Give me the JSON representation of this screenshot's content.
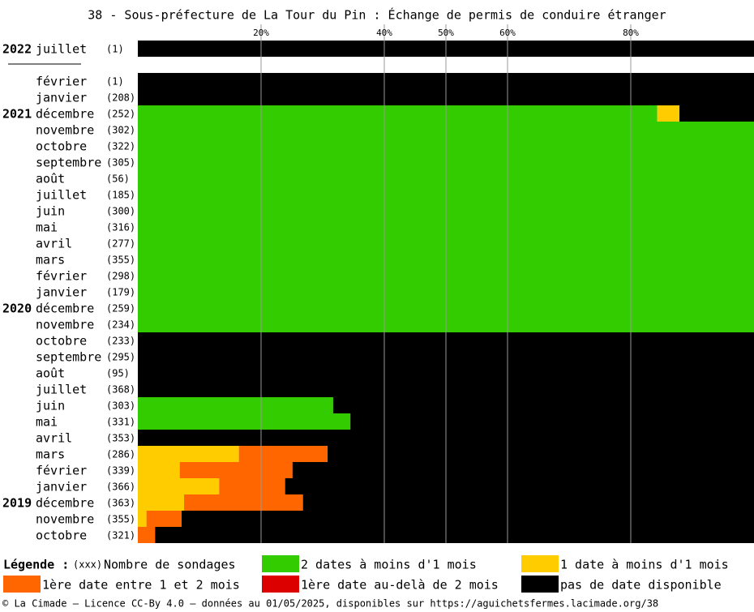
{
  "chart_data": {
    "type": "stacked-barh",
    "title": "38 - Sous-préfecture de La Tour du Pin : Échange de permis de conduire étranger",
    "categories": [
      "juillet",
      null,
      "février",
      "janvier",
      "décembre",
      "novembre",
      "octobre",
      "septembre",
      "août",
      "juillet",
      "juin",
      "mai",
      "avril",
      "mars",
      "février",
      "janvier",
      "décembre",
      "novembre",
      "octobre",
      "septembre",
      "août",
      "juillet",
      "juin",
      "mai",
      "avril",
      "mars",
      "février",
      "janvier",
      "décembre",
      "novembre",
      "octobre"
    ],
    "years": [
      "2022",
      null,
      null,
      null,
      "2021",
      null,
      null,
      null,
      null,
      null,
      null,
      null,
      null,
      null,
      null,
      null,
      "2020",
      null,
      null,
      null,
      null,
      null,
      null,
      null,
      null,
      null,
      null,
      null,
      "2019",
      null,
      null
    ],
    "count_labels": [
      "(1)",
      null,
      "(1)",
      "(208)",
      "(252)",
      "(302)",
      "(322)",
      "(305)",
      "(56)",
      "(185)",
      "(300)",
      "(316)",
      "(277)",
      "(355)",
      "(298)",
      "(179)",
      "(259)",
      "(234)",
      "(233)",
      "(295)",
      "(95)",
      "(368)",
      "(303)",
      "(331)",
      "(353)",
      "(286)",
      "(339)",
      "(366)",
      "(363)",
      "(355)",
      "(321)"
    ],
    "series": [
      {
        "name": "2 dates à moins d'1 mois",
        "color": "#33cc00",
        "values": [
          0,
          null,
          0,
          0,
          84.3,
          100,
          100,
          100,
          100,
          100,
          100,
          100,
          100,
          100,
          100,
          100,
          100,
          100,
          0,
          0,
          0,
          0,
          31.7,
          34.5,
          0,
          0,
          0,
          0,
          0,
          0,
          0
        ]
      },
      {
        "name": "1 date à moins d'1 mois",
        "color": "#ffcc00",
        "values": [
          0,
          null,
          0,
          0,
          3.6,
          0,
          0,
          0,
          0,
          0,
          0,
          0,
          0,
          0,
          0,
          0,
          0,
          0,
          0,
          0,
          0,
          0,
          0,
          0,
          0,
          16.4,
          6.8,
          13.2,
          7.5,
          1.4,
          0
        ]
      },
      {
        "name": "1ère date entre 1 et 2 mois",
        "color": "#ff6600",
        "values": [
          0,
          null,
          0,
          0,
          0,
          0,
          0,
          0,
          0,
          0,
          0,
          0,
          0,
          0,
          0,
          0,
          0,
          0,
          0,
          0,
          0,
          0,
          0,
          0,
          0,
          14.4,
          18.3,
          10.7,
          19.3,
          5.7,
          2.8
        ]
      },
      {
        "name": "1ère date au-delà de 2 mois",
        "color": "#dd0000",
        "values": [
          0,
          null,
          0,
          0,
          0,
          0,
          0,
          0,
          0,
          0,
          0,
          0,
          0,
          0,
          0,
          0,
          0,
          0,
          0,
          0,
          0,
          0,
          0,
          0,
          0,
          0,
          0,
          0,
          0,
          0,
          0
        ]
      },
      {
        "name": "pas de date disponible",
        "color": "#000000",
        "values": [
          100,
          null,
          100,
          100,
          12.1,
          0,
          0,
          0,
          0,
          0,
          0,
          0,
          0,
          0,
          0,
          0,
          0,
          0,
          100,
          100,
          100,
          100,
          68.3,
          65.5,
          100,
          69.2,
          74.9,
          76.1,
          73.2,
          92.9,
          97.2
        ]
      }
    ],
    "xlim": [
      0,
      100
    ],
    "xticks": [
      {
        "value": 20,
        "label": "20%"
      },
      {
        "value": 40,
        "label": "40%"
      },
      {
        "value": 50,
        "label": "50%"
      },
      {
        "value": 60,
        "label": "60%"
      },
      {
        "value": 80,
        "label": "80%"
      }
    ],
    "grid": true,
    "legend_title": "Légende :",
    "count_key": "(xxx)",
    "count_key_label": "Nombre de sondages",
    "footer": "© La Cimade — Licence CC-By 4.0 — données au 01/05/2025, disponibles sur https://aguichetsfermes.lacimade.org/38"
  }
}
